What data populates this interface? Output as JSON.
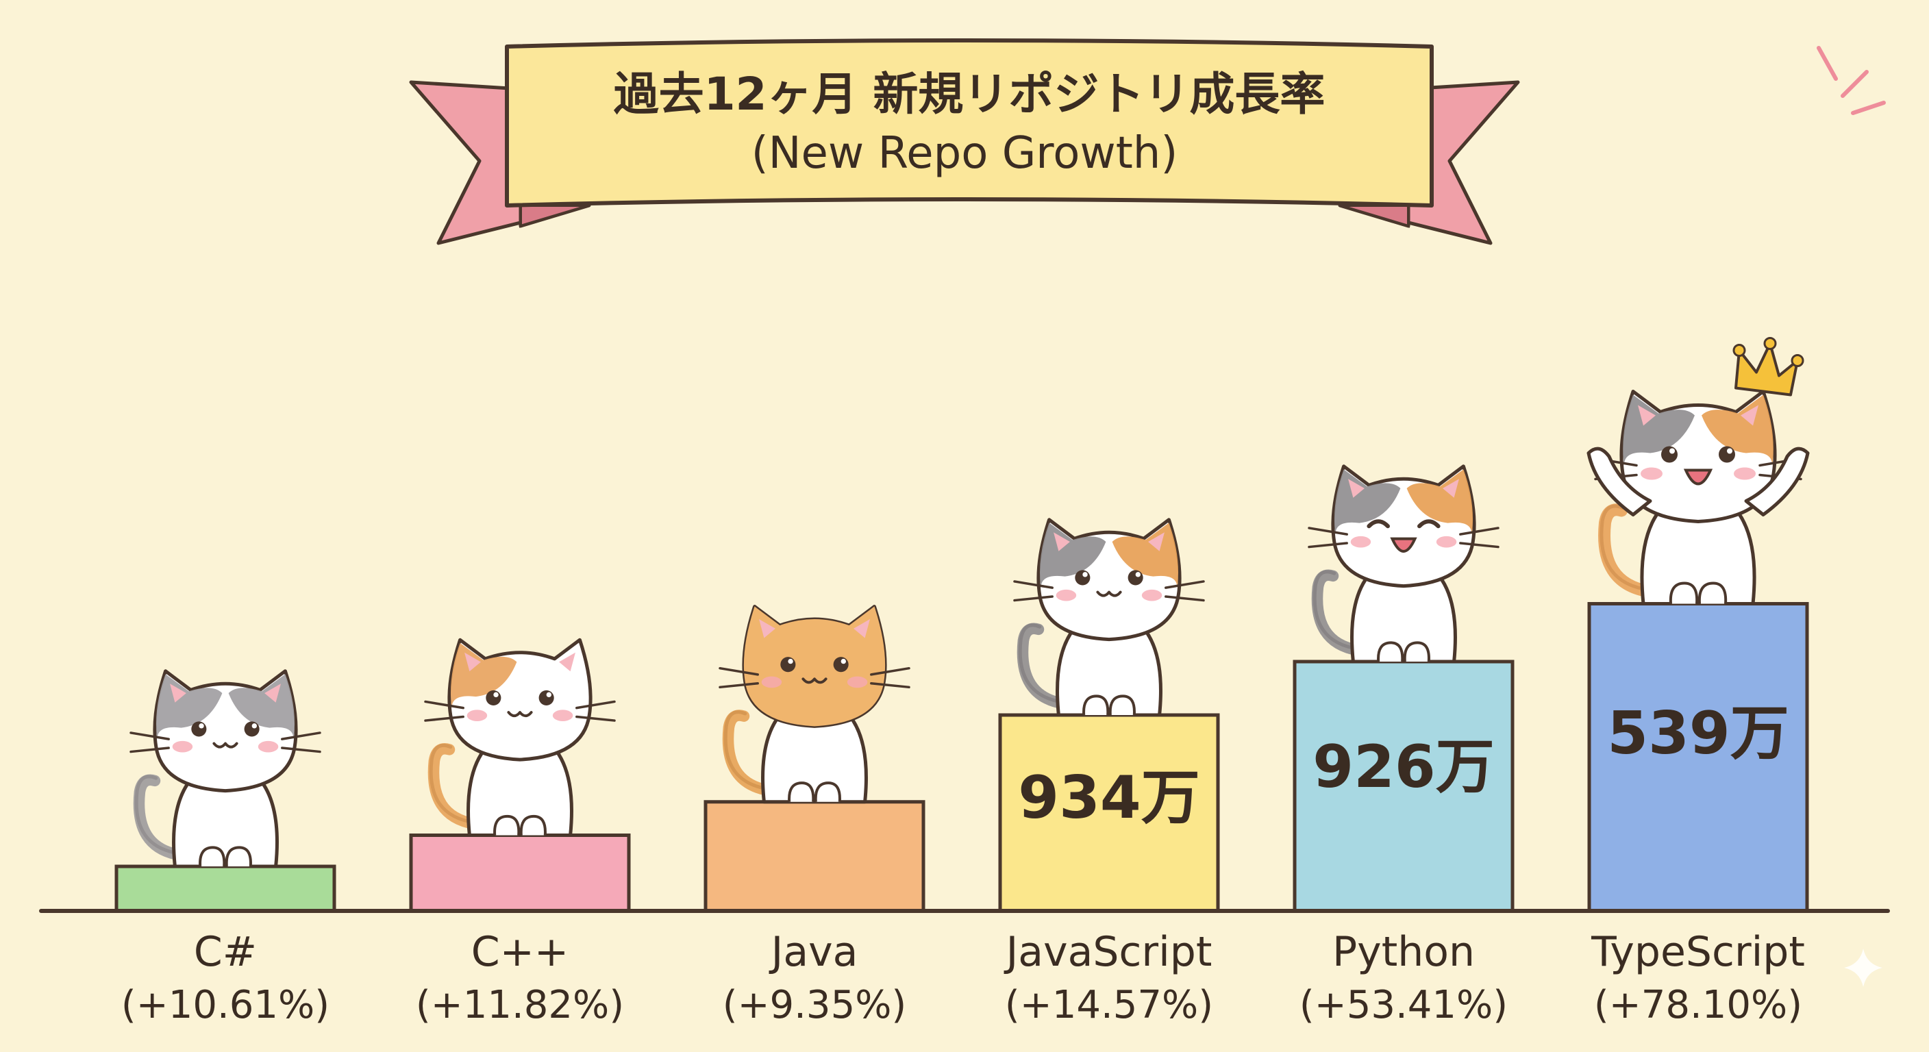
{
  "title": {
    "main": "過去12ヶ月 新規リポジトリ成長率",
    "sub": "(New Repo Growth)"
  },
  "colors": {
    "background": "#fbf3d6",
    "ribbon": "#f0a0a8",
    "banner": "#fbe79a",
    "outline": "#4a372c",
    "crown": "#f5c13a"
  },
  "chart_data": {
    "type": "bar",
    "title": "過去12ヶ月 新規リポジトリ成長率 (New Repo Growth)",
    "categories": [
      "C#",
      "C++",
      "Java",
      "JavaScript",
      "Python",
      "TypeScript"
    ],
    "growth_labels": [
      "(+10.61%)",
      "(+11.82%)",
      "(+9.35%)",
      "(+14.57%)",
      "(+53.41%)",
      "(+78.10%)"
    ],
    "values_pct": [
      10.61,
      11.82,
      9.35,
      14.57,
      53.41,
      78.1
    ],
    "value_labels": [
      "",
      "",
      "",
      "934万",
      "926万",
      "539万"
    ],
    "bar_colors": [
      "#a9dc99",
      "#f5a9b8",
      "#f5b880",
      "#fbe78c",
      "#a8d8e2",
      "#8fb0e6"
    ],
    "display_scale": [
      1,
      1.7,
      2.45,
      4.4,
      5.6,
      6.9
    ],
    "decorations": [
      "gray-tabby-cat",
      "calico-cat",
      "orange-tabby-cat",
      "calico-cat",
      "calico-cat",
      "calico-cat-with-crown"
    ],
    "xlabel": "",
    "ylabel": "",
    "grid": false,
    "legend": "none"
  }
}
